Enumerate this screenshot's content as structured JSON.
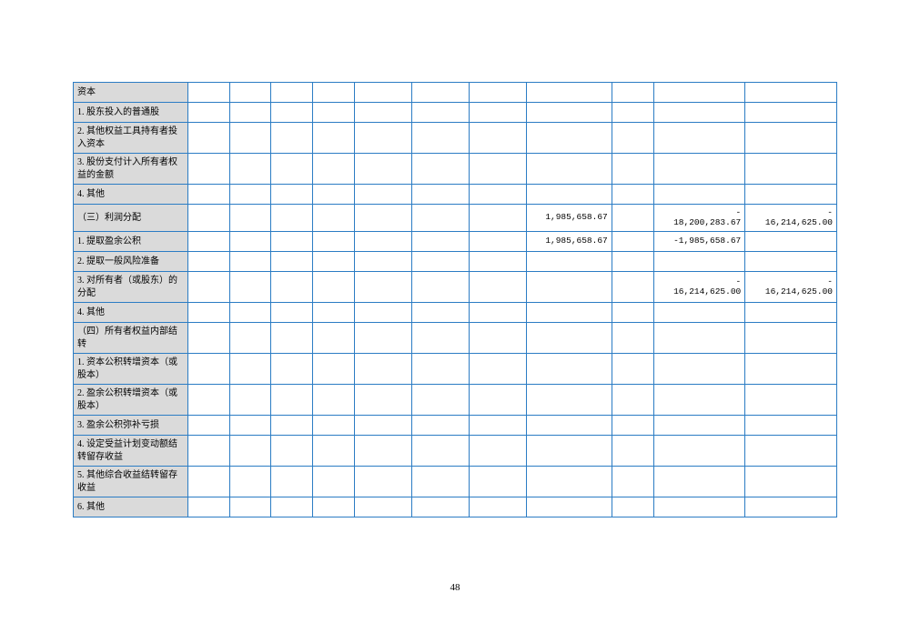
{
  "table": {
    "border_color": "#2b7cc4",
    "label_bg": "#dadada",
    "rows": [
      {
        "label": "资本",
        "cells": [
          "",
          "",
          "",
          "",
          "",
          "",
          "",
          "",
          "",
          "",
          ""
        ]
      },
      {
        "label": "1. 股东投入的普通股",
        "cells": [
          "",
          "",
          "",
          "",
          "",
          "",
          "",
          "",
          "",
          "",
          ""
        ]
      },
      {
        "label": "2. 其他权益工具持有者投入资本",
        "tall": true,
        "cells": [
          "",
          "",
          "",
          "",
          "",
          "",
          "",
          "",
          "",
          "",
          ""
        ]
      },
      {
        "label": "3. 股份支付计入所有者权益的金额",
        "tall": true,
        "cells": [
          "",
          "",
          "",
          "",
          "",
          "",
          "",
          "",
          "",
          "",
          ""
        ]
      },
      {
        "label": "4. 其他",
        "cells": [
          "",
          "",
          "",
          "",
          "",
          "",
          "",
          "",
          "",
          "",
          ""
        ]
      },
      {
        "label": "（三）利润分配",
        "tall": true,
        "cells": [
          "",
          "",
          "",
          "",
          "",
          "",
          "",
          "1,985,658.67",
          "",
          {
            "neg": true,
            "v": "18,200,283.67"
          },
          {
            "neg": true,
            "v": "16,214,625.00"
          }
        ]
      },
      {
        "label": "1. 提取盈余公积",
        "cells": [
          "",
          "",
          "",
          "",
          "",
          "",
          "",
          "1,985,658.67",
          "",
          "-1,985,658.67",
          ""
        ]
      },
      {
        "label": "2. 提取一般风险准备",
        "cells": [
          "",
          "",
          "",
          "",
          "",
          "",
          "",
          "",
          "",
          "",
          ""
        ]
      },
      {
        "label": "3. 对所有者（或股东）的分配",
        "tall": true,
        "cells": [
          "",
          "",
          "",
          "",
          "",
          "",
          "",
          "",
          "",
          {
            "neg": true,
            "v": "16,214,625.00"
          },
          {
            "neg": true,
            "v": "16,214,625.00"
          }
        ]
      },
      {
        "label": "4. 其他",
        "cells": [
          "",
          "",
          "",
          "",
          "",
          "",
          "",
          "",
          "",
          "",
          ""
        ]
      },
      {
        "label": "（四）所有者权益内部结转",
        "tall": true,
        "cells": [
          "",
          "",
          "",
          "",
          "",
          "",
          "",
          "",
          "",
          "",
          ""
        ]
      },
      {
        "label": "1. 资本公积转增资本（或股本）",
        "tall": true,
        "cells": [
          "",
          "",
          "",
          "",
          "",
          "",
          "",
          "",
          "",
          "",
          ""
        ]
      },
      {
        "label": "2. 盈余公积转增资本（或股本）",
        "tall": true,
        "cells": [
          "",
          "",
          "",
          "",
          "",
          "",
          "",
          "",
          "",
          "",
          ""
        ]
      },
      {
        "label": "3. 盈余公积弥补亏损",
        "cells": [
          "",
          "",
          "",
          "",
          "",
          "",
          "",
          "",
          "",
          "",
          ""
        ]
      },
      {
        "label": "4. 设定受益计划变动额结转留存收益",
        "tall": true,
        "cells": [
          "",
          "",
          "",
          "",
          "",
          "",
          "",
          "",
          "",
          "",
          ""
        ]
      },
      {
        "label": "5. 其他综合收益结转留存收益",
        "tall": true,
        "cells": [
          "",
          "",
          "",
          "",
          "",
          "",
          "",
          "",
          "",
          "",
          ""
        ]
      },
      {
        "label": "6. 其他",
        "cells": [
          "",
          "",
          "",
          "",
          "",
          "",
          "",
          "",
          "",
          "",
          ""
        ]
      }
    ]
  },
  "page_number": "48"
}
